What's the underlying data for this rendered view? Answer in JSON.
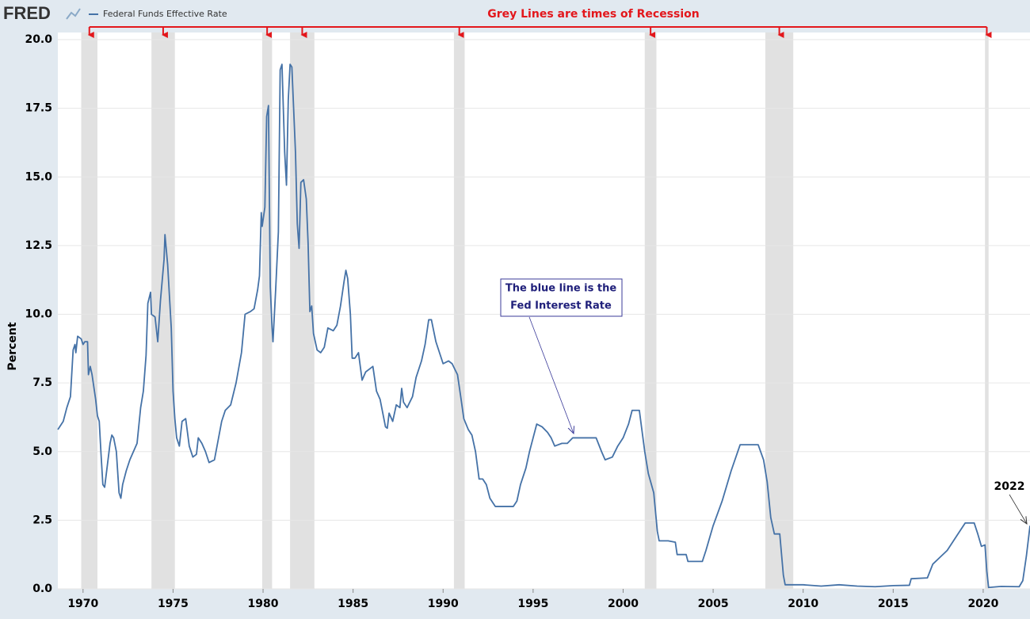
{
  "chart_data": {
    "type": "line",
    "source": "FRED",
    "y_label": "Percent",
    "recession_note": "Grey Lines are times of Recession",
    "rate_note": [
      "The blue line is the",
      "Fed Interest Rate"
    ],
    "year_note": "2022",
    "xlim": [
      1968.6,
      2022.6
    ],
    "ylim": [
      0,
      20
    ],
    "xticks": [
      1970,
      1975,
      1980,
      1985,
      1990,
      1995,
      2000,
      2005,
      2010,
      2015,
      2020
    ],
    "yticks": [
      {
        "value": 0,
        "label": "0.0"
      },
      2.5,
      {
        "value": 5,
        "label": "5.0"
      },
      7.5,
      {
        "value": 10,
        "label": "10.0"
      },
      12.5,
      {
        "value": 15,
        "label": "15.0"
      },
      17.5,
      {
        "value": 20,
        "label": "20.0"
      }
    ],
    "grid": true,
    "recession_color": "#e1e1e1",
    "recessions": [
      [
        1969.9,
        1970.8
      ],
      [
        1973.8,
        1975.1
      ],
      [
        1979.95,
        1980.5
      ],
      [
        1981.5,
        1982.85
      ],
      [
        1990.6,
        1991.2
      ],
      [
        2001.2,
        2001.85
      ],
      [
        2007.9,
        2009.45
      ],
      [
        2020.1,
        2020.3
      ]
    ],
    "series": [
      {
        "name": "Federal Funds Effective Rate",
        "color": "#4572a7",
        "x": [
          1968.6,
          1968.9,
          1969.1,
          1969.3,
          1969.45,
          1969.55,
          1969.6,
          1969.7,
          1969.9,
          1970.0,
          1970.1,
          1970.25,
          1970.3,
          1970.4,
          1970.5,
          1970.7,
          1970.8,
          1970.9,
          1971.0,
          1971.1,
          1971.2,
          1971.35,
          1971.5,
          1971.6,
          1971.7,
          1971.85,
          1972.0,
          1972.1,
          1972.2,
          1972.4,
          1972.6,
          1972.8,
          1973.0,
          1973.2,
          1973.35,
          1973.5,
          1973.6,
          1973.75,
          1973.8,
          1974.0,
          1974.15,
          1974.3,
          1974.5,
          1974.55,
          1974.7,
          1974.9,
          1975.0,
          1975.1,
          1975.2,
          1975.35,
          1975.5,
          1975.7,
          1975.9,
          1976.1,
          1976.3,
          1976.4,
          1976.6,
          1976.8,
          1977.0,
          1977.3,
          1977.5,
          1977.7,
          1977.9,
          1978.2,
          1978.5,
          1978.8,
          1979.0,
          1979.3,
          1979.5,
          1979.7,
          1979.8,
          1979.9,
          1979.95,
          1980.1,
          1980.2,
          1980.3,
          1980.4,
          1980.5,
          1980.55,
          1980.7,
          1980.85,
          1980.95,
          1981.05,
          1981.2,
          1981.3,
          1981.4,
          1981.5,
          1981.6,
          1981.8,
          1981.9,
          1982.0,
          1982.1,
          1982.25,
          1982.4,
          1982.5,
          1982.6,
          1982.7,
          1982.8,
          1983.0,
          1983.2,
          1983.4,
          1983.6,
          1983.9,
          1984.1,
          1984.3,
          1984.5,
          1984.6,
          1984.7,
          1984.85,
          1984.95,
          1985.1,
          1985.3,
          1985.5,
          1985.7,
          1985.9,
          1986.1,
          1986.3,
          1986.5,
          1986.8,
          1986.9,
          1987.0,
          1987.2,
          1987.4,
          1987.6,
          1987.7,
          1987.8,
          1988.0,
          1988.3,
          1988.5,
          1988.8,
          1989.0,
          1989.2,
          1989.35,
          1989.6,
          1989.8,
          1990.0,
          1990.3,
          1990.5,
          1990.8,
          1991.0,
          1991.15,
          1991.4,
          1991.6,
          1991.8,
          1992.0,
          1992.2,
          1992.4,
          1992.6,
          1992.9,
          1993.2,
          1993.5,
          1993.9,
          1994.1,
          1994.3,
          1994.6,
          1994.8,
          1995.0,
          1995.2,
          1995.5,
          1995.8,
          1996.0,
          1996.2,
          1996.6,
          1996.9,
          1997.2,
          1997.6,
          1998.0,
          1998.5,
          1998.8,
          1999.0,
          1999.4,
          1999.7,
          2000.0,
          2000.3,
          2000.5,
          2000.9,
          2001.0,
          2001.2,
          2001.4,
          2001.7,
          2001.9,
          2002.0,
          2002.5,
          2002.9,
          2003.0,
          2003.5,
          2003.6,
          2004.4,
          2004.6,
          2005.0,
          2005.5,
          2006.0,
          2006.5,
          2007.5,
          2007.8,
          2008.0,
          2008.2,
          2008.4,
          2008.7,
          2008.9,
          2009.0,
          2010.0,
          2011.0,
          2012.0,
          2013.0,
          2014.0,
          2015.0,
          2015.9,
          2016.0,
          2016.9,
          2017.2,
          2017.6,
          2018.0,
          2018.5,
          2019.0,
          2019.5,
          2019.7,
          2019.9,
          2020.1,
          2020.2,
          2020.3,
          2021.0,
          2022.0,
          2022.2,
          2022.4,
          2022.6
        ],
        "values": [
          5.8,
          6.1,
          6.6,
          7.0,
          8.7,
          8.9,
          8.6,
          9.2,
          9.1,
          8.9,
          9.0,
          9.0,
          7.8,
          8.1,
          7.8,
          6.9,
          6.3,
          6.1,
          4.9,
          3.8,
          3.7,
          4.5,
          5.3,
          5.6,
          5.5,
          5.0,
          3.5,
          3.3,
          3.8,
          4.3,
          4.7,
          5.0,
          5.3,
          6.6,
          7.2,
          8.5,
          10.4,
          10.8,
          10.0,
          9.9,
          9.0,
          10.5,
          12.0,
          12.9,
          11.8,
          9.5,
          7.2,
          6.2,
          5.5,
          5.2,
          6.1,
          6.2,
          5.2,
          4.8,
          4.9,
          5.5,
          5.3,
          5.0,
          4.6,
          4.7,
          5.4,
          6.1,
          6.5,
          6.7,
          7.5,
          8.6,
          10.0,
          10.1,
          10.2,
          10.9,
          11.4,
          13.7,
          13.2,
          13.9,
          17.2,
          17.6,
          11.0,
          9.5,
          9.0,
          10.9,
          13.0,
          18.9,
          19.1,
          15.9,
          14.7,
          17.8,
          19.1,
          19.0,
          15.9,
          13.3,
          12.4,
          14.8,
          14.9,
          14.2,
          12.6,
          10.1,
          10.3,
          9.3,
          8.7,
          8.6,
          8.8,
          9.5,
          9.4,
          9.6,
          10.3,
          11.2,
          11.6,
          11.3,
          10.0,
          8.4,
          8.4,
          8.6,
          7.6,
          7.9,
          8.0,
          8.1,
          7.2,
          6.9,
          5.9,
          5.85,
          6.4,
          6.1,
          6.7,
          6.6,
          7.3,
          6.8,
          6.6,
          7.0,
          7.7,
          8.3,
          8.9,
          9.8,
          9.8,
          9.0,
          8.6,
          8.2,
          8.3,
          8.2,
          7.8,
          6.9,
          6.2,
          5.8,
          5.6,
          5.0,
          4.0,
          4.0,
          3.8,
          3.3,
          3.0,
          3.0,
          3.0,
          3.0,
          3.2,
          3.8,
          4.4,
          5.0,
          5.5,
          6.0,
          5.9,
          5.7,
          5.5,
          5.2,
          5.3,
          5.3,
          5.5,
          5.5,
          5.5,
          5.5,
          5.0,
          4.7,
          4.8,
          5.2,
          5.5,
          6.0,
          6.5,
          6.5,
          6.0,
          5.0,
          4.2,
          3.5,
          2.1,
          1.75,
          1.75,
          1.7,
          1.25,
          1.25,
          1.0,
          1.0,
          1.4,
          2.3,
          3.2,
          4.3,
          5.25,
          5.25,
          4.7,
          3.9,
          2.6,
          2.0,
          2.0,
          0.5,
          0.15,
          0.15,
          0.1,
          0.15,
          0.1,
          0.08,
          0.12,
          0.13,
          0.37,
          0.4,
          0.9,
          1.15,
          1.4,
          1.9,
          2.4,
          2.4,
          2.0,
          1.55,
          1.6,
          0.65,
          0.05,
          0.09,
          0.08,
          0.3,
          1.2,
          2.3
        ]
      }
    ]
  }
}
